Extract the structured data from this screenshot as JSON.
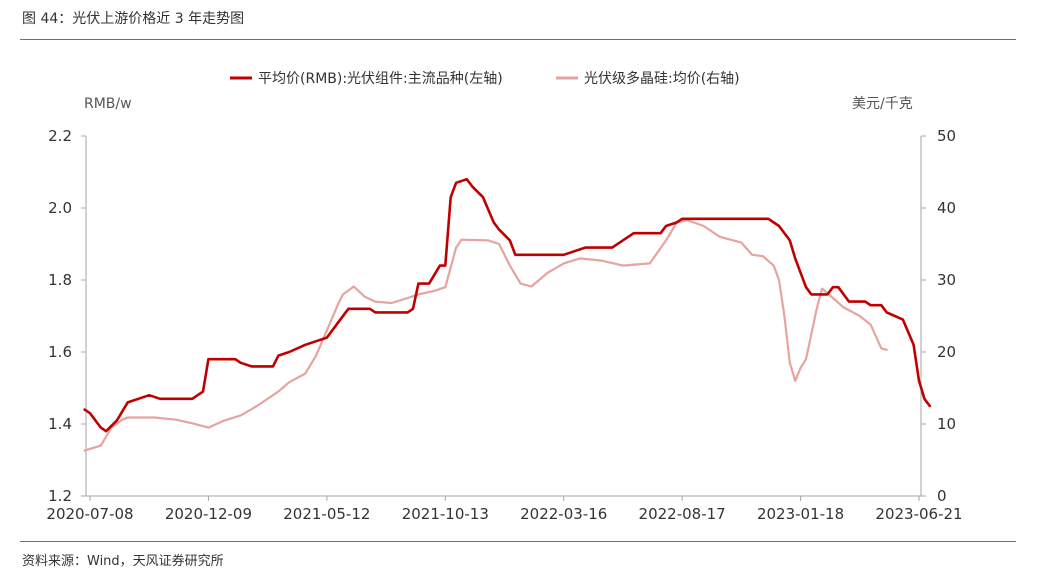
{
  "figure": {
    "title": "图 44：光伏上游价格近 3 年走势图",
    "source": "资料来源：Wind，天风证券研究所"
  },
  "colors": {
    "module": "#c00000",
    "polysilicon": "#e6a39f",
    "axis": "#a6a6a6",
    "rule": "#c0504d"
  },
  "chart_data": {
    "type": "line",
    "left_unit": "RMB/w",
    "right_unit": "美元/千克",
    "x_ticks": [
      "2020-07-08",
      "2020-12-09",
      "2021-05-12",
      "2021-10-13",
      "2022-03-16",
      "2022-08-17",
      "2023-01-18",
      "2023-06-21"
    ],
    "y_left": {
      "min": 1.2,
      "max": 2.2,
      "ticks": [
        "1.2",
        "1.4",
        "1.6",
        "1.8",
        "2.0",
        "2.2"
      ]
    },
    "y_right": {
      "min": 0,
      "max": 50,
      "ticks": [
        "0",
        "10",
        "20",
        "30",
        "40",
        "50"
      ]
    },
    "legend_position": "top",
    "grid": false,
    "series": [
      {
        "name": "平均价(RMB):光伏组件:主流品种(左轴)",
        "axis": "left",
        "points": [
          [
            "2020-07-01",
            1.44
          ],
          [
            "2020-07-08",
            1.43
          ],
          [
            "2020-07-22",
            1.39
          ],
          [
            "2020-07-29",
            1.38
          ],
          [
            "2020-08-12",
            1.41
          ],
          [
            "2020-08-26",
            1.46
          ],
          [
            "2020-09-09",
            1.47
          ],
          [
            "2020-09-23",
            1.48
          ],
          [
            "2020-10-07",
            1.47
          ],
          [
            "2020-11-18",
            1.47
          ],
          [
            "2020-12-02",
            1.49
          ],
          [
            "2020-12-09",
            1.58
          ],
          [
            "2021-01-13",
            1.58
          ],
          [
            "2021-01-20",
            1.57
          ],
          [
            "2021-02-03",
            1.56
          ],
          [
            "2021-03-03",
            1.56
          ],
          [
            "2021-03-10",
            1.59
          ],
          [
            "2021-03-24",
            1.6
          ],
          [
            "2021-04-14",
            1.62
          ],
          [
            "2021-04-28",
            1.63
          ],
          [
            "2021-05-12",
            1.64
          ],
          [
            "2021-05-26",
            1.68
          ],
          [
            "2021-06-09",
            1.72
          ],
          [
            "2021-07-07",
            1.72
          ],
          [
            "2021-07-14",
            1.71
          ],
          [
            "2021-08-25",
            1.71
          ],
          [
            "2021-09-01",
            1.72
          ],
          [
            "2021-09-08",
            1.79
          ],
          [
            "2021-09-22",
            1.79
          ],
          [
            "2021-10-06",
            1.84
          ],
          [
            "2021-10-13",
            1.84
          ],
          [
            "2021-10-20",
            2.03
          ],
          [
            "2021-10-27",
            2.07
          ],
          [
            "2021-11-10",
            2.08
          ],
          [
            "2021-11-17",
            2.06
          ],
          [
            "2021-12-01",
            2.03
          ],
          [
            "2021-12-15",
            1.96
          ],
          [
            "2021-12-22",
            1.94
          ],
          [
            "2022-01-05",
            1.91
          ],
          [
            "2022-01-12",
            1.87
          ],
          [
            "2022-03-16",
            1.87
          ],
          [
            "2022-03-30",
            1.88
          ],
          [
            "2022-04-13",
            1.89
          ],
          [
            "2022-05-18",
            1.89
          ],
          [
            "2022-06-15",
            1.93
          ],
          [
            "2022-07-20",
            1.93
          ],
          [
            "2022-07-27",
            1.95
          ],
          [
            "2022-08-10",
            1.96
          ],
          [
            "2022-08-17",
            1.97
          ],
          [
            "2022-08-31",
            1.97
          ],
          [
            "2022-12-07",
            1.97
          ],
          [
            "2022-12-21",
            1.95
          ],
          [
            "2023-01-04",
            1.91
          ],
          [
            "2023-01-11",
            1.86
          ],
          [
            "2023-01-25",
            1.78
          ],
          [
            "2023-02-01",
            1.76
          ],
          [
            "2023-02-22",
            1.76
          ],
          [
            "2023-03-01",
            1.78
          ],
          [
            "2023-03-08",
            1.78
          ],
          [
            "2023-03-22",
            1.74
          ],
          [
            "2023-04-12",
            1.74
          ],
          [
            "2023-04-19",
            1.73
          ],
          [
            "2023-05-03",
            1.73
          ],
          [
            "2023-05-10",
            1.71
          ],
          [
            "2023-05-31",
            1.69
          ],
          [
            "2023-06-14",
            1.62
          ],
          [
            "2023-06-21",
            1.52
          ],
          [
            "2023-06-28",
            1.47
          ],
          [
            "2023-07-05",
            1.45
          ]
        ]
      },
      {
        "name": "光伏级多晶硅:均价(右轴)",
        "axis": "right",
        "points": [
          [
            "2020-07-01",
            6.3
          ],
          [
            "2020-07-22",
            7.0
          ],
          [
            "2020-08-05",
            9.5
          ],
          [
            "2020-08-19",
            10.6
          ],
          [
            "2020-08-26",
            10.9
          ],
          [
            "2020-09-30",
            10.9
          ],
          [
            "2020-10-28",
            10.6
          ],
          [
            "2020-11-18",
            10.1
          ],
          [
            "2020-12-09",
            9.5
          ],
          [
            "2020-12-30",
            10.5
          ],
          [
            "2021-01-20",
            11.2
          ],
          [
            "2021-02-10",
            12.5
          ],
          [
            "2021-02-24",
            13.5
          ],
          [
            "2021-03-10",
            14.5
          ],
          [
            "2021-03-24",
            15.8
          ],
          [
            "2021-04-14",
            17.0
          ],
          [
            "2021-04-28",
            19.5
          ],
          [
            "2021-05-12",
            23.0
          ],
          [
            "2021-05-26",
            26.5
          ],
          [
            "2021-06-02",
            28.0
          ],
          [
            "2021-06-16",
            29.1
          ],
          [
            "2021-06-30",
            27.7
          ],
          [
            "2021-07-14",
            27.0
          ],
          [
            "2021-08-04",
            26.8
          ],
          [
            "2021-08-25",
            27.5
          ],
          [
            "2021-09-08",
            28.0
          ],
          [
            "2021-09-29",
            28.5
          ],
          [
            "2021-10-13",
            29.0
          ],
          [
            "2021-10-27",
            34.5
          ],
          [
            "2021-11-03",
            35.6
          ],
          [
            "2021-12-08",
            35.5
          ],
          [
            "2021-12-22",
            35.0
          ],
          [
            "2022-01-05",
            32.0
          ],
          [
            "2022-01-19",
            29.5
          ],
          [
            "2022-02-02",
            29.1
          ],
          [
            "2022-02-23",
            31.0
          ],
          [
            "2022-03-16",
            32.3
          ],
          [
            "2022-04-06",
            33.0
          ],
          [
            "2022-05-04",
            32.7
          ],
          [
            "2022-06-01",
            32.0
          ],
          [
            "2022-07-06",
            32.3
          ],
          [
            "2022-07-27",
            35.5
          ],
          [
            "2022-08-10",
            38.0
          ],
          [
            "2022-08-24",
            38.3
          ],
          [
            "2022-09-14",
            37.5
          ],
          [
            "2022-10-05",
            36.0
          ],
          [
            "2022-11-02",
            35.2
          ],
          [
            "2022-11-16",
            33.5
          ],
          [
            "2022-11-30",
            33.3
          ],
          [
            "2022-12-14",
            32.0
          ],
          [
            "2022-12-21",
            30.0
          ],
          [
            "2022-12-28",
            25.0
          ],
          [
            "2023-01-04",
            18.5
          ],
          [
            "2023-01-11",
            16.0
          ],
          [
            "2023-01-18",
            17.8
          ],
          [
            "2023-01-25",
            19.0
          ],
          [
            "2023-02-08",
            26.0
          ],
          [
            "2023-02-15",
            28.8
          ],
          [
            "2023-03-01",
            27.5
          ],
          [
            "2023-03-15",
            26.2
          ],
          [
            "2023-04-05",
            25.0
          ],
          [
            "2023-04-19",
            23.8
          ],
          [
            "2023-05-03",
            20.5
          ],
          [
            "2023-05-10",
            20.3
          ]
        ]
      }
    ]
  }
}
